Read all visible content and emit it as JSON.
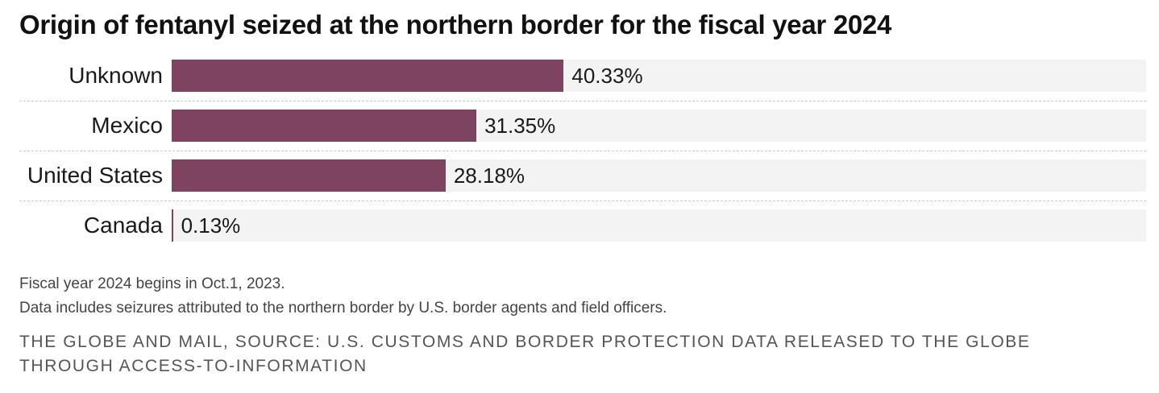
{
  "chart_data": {
    "type": "bar",
    "orientation": "horizontal",
    "title": "Origin of fentanyl seized at the northern border for the fiscal year 2024",
    "categories": [
      "Unknown",
      "Mexico",
      "United States",
      "Canada"
    ],
    "values": [
      40.33,
      31.35,
      28.18,
      0.13
    ],
    "value_labels": [
      "40.33%",
      "31.35%",
      "28.18%",
      "0.13%"
    ],
    "xlim": [
      0,
      100
    ],
    "bar_color": "#7d4360",
    "track_color": "#f3f3f3",
    "grid": false,
    "legend": "none"
  },
  "notes": {
    "line1": "Fiscal year 2024 begins in Oct.1, 2023.",
    "line2": "Data includes seizures attributed to the northern border by U.S. border agents and field officers."
  },
  "source": "THE GLOBE AND MAIL, SOURCE: U.S. CUSTOMS AND BORDER PROTECTION DATA RELEASED TO THE GLOBE THROUGH ACCESS-TO-INFORMATION"
}
